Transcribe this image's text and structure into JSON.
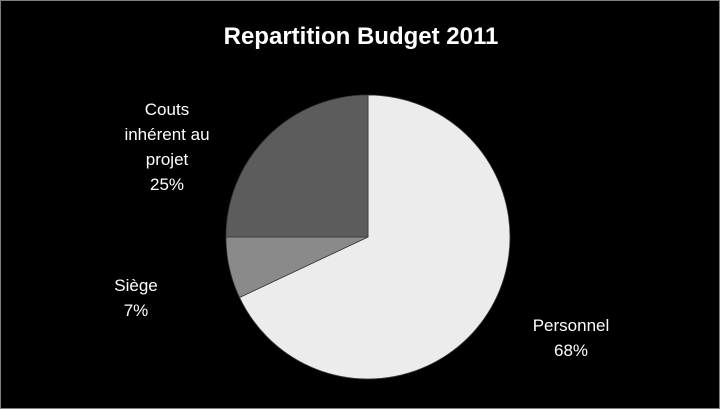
{
  "chart_data": {
    "type": "pie",
    "title": "Repartition Budget 2011",
    "categories": [
      "Personnel",
      "Siège",
      "Couts inhérent au projet"
    ],
    "values": [
      68,
      7,
      25
    ],
    "value_format": "percent",
    "colors": [
      "#ececec",
      "#8a8a8a",
      "#5c5c5c"
    ],
    "start_angle_deg": 0,
    "direction": "clockwise",
    "legend": "none",
    "data_labels": [
      {
        "category_lines": [
          "Personnel"
        ],
        "value": "68%"
      },
      {
        "category_lines": [
          "Siège"
        ],
        "value": "7%"
      },
      {
        "category_lines": [
          "Couts",
          "inhérent au",
          "projet"
        ],
        "value": "25%"
      }
    ]
  },
  "frame": {
    "background": "#000000",
    "border": "#7f7f7f",
    "text_color": "#ffffff"
  }
}
